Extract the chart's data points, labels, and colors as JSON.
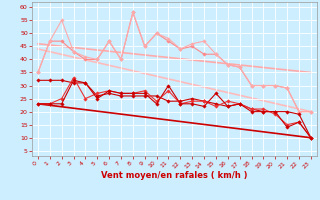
{
  "background_color": "#cceeff",
  "grid_color": "#ffffff",
  "xlabel": "Vent moyen/en rafales ( km/h )",
  "ylabel_ticks": [
    5,
    10,
    15,
    20,
    25,
    30,
    35,
    40,
    45,
    50,
    55,
    60
  ],
  "x_ticks": [
    0,
    1,
    2,
    3,
    4,
    5,
    6,
    7,
    8,
    9,
    10,
    11,
    12,
    13,
    14,
    15,
    16,
    17,
    18,
    19,
    20,
    21,
    22,
    23
  ],
  "xlim": [
    -0.5,
    23.5
  ],
  "ylim": [
    3,
    62
  ],
  "lines": [
    {
      "x": [
        0,
        1,
        2,
        3,
        4,
        5,
        6,
        7,
        8,
        9,
        10,
        11,
        12,
        13,
        14,
        15,
        16,
        17,
        18,
        19,
        20,
        21,
        22,
        23
      ],
      "y": [
        23,
        23,
        23,
        32,
        31,
        25,
        28,
        27,
        27,
        27,
        23,
        30,
        23,
        23,
        22,
        27,
        22,
        23,
        20,
        20,
        20,
        14,
        16,
        10
      ],
      "color": "#cc0000",
      "linewidth": 0.8,
      "marker": "D",
      "markersize": 1.8,
      "zorder": 5
    },
    {
      "x": [
        0,
        1,
        2,
        3,
        4,
        5,
        6,
        7,
        8,
        9,
        10,
        11,
        12,
        13,
        14,
        15,
        16,
        17,
        18,
        19,
        20,
        21,
        22,
        23
      ],
      "y": [
        32,
        32,
        32,
        31,
        31,
        26,
        27,
        26,
        26,
        26,
        26,
        24,
        24,
        25,
        24,
        23,
        22,
        23,
        21,
        20,
        20,
        20,
        19,
        10
      ],
      "color": "#cc0000",
      "linewidth": 0.8,
      "marker": "D",
      "markersize": 1.8,
      "zorder": 4
    },
    {
      "x": [
        0,
        1,
        2,
        3,
        4,
        5,
        6,
        7,
        8,
        9,
        10,
        11,
        12,
        13,
        14,
        15,
        16,
        17,
        18,
        19,
        20,
        21,
        22,
        23
      ],
      "y": [
        23,
        23,
        25,
        33,
        25,
        27,
        28,
        27,
        27,
        28,
        24,
        28,
        23,
        24,
        24,
        22,
        24,
        23,
        21,
        21,
        19,
        15,
        16,
        10
      ],
      "color": "#ee3333",
      "linewidth": 0.8,
      "marker": "D",
      "markersize": 1.8,
      "zorder": 4
    },
    {
      "x": [
        0,
        23
      ],
      "y": [
        23,
        10
      ],
      "color": "#cc0000",
      "linewidth": 1.2,
      "marker": null,
      "markersize": 0,
      "zorder": 3
    },
    {
      "x": [
        0,
        1,
        2,
        3,
        4,
        5,
        6,
        7,
        8,
        9,
        10,
        11,
        12,
        13,
        14,
        15,
        16,
        17,
        18,
        19,
        20,
        21,
        22,
        23
      ],
      "y": [
        35,
        47,
        47,
        43,
        40,
        40,
        47,
        40,
        58,
        45,
        50,
        47,
        44,
        45,
        42,
        42,
        38,
        37,
        30,
        30,
        30,
        29,
        20,
        20
      ],
      "color": "#ff8888",
      "linewidth": 0.8,
      "marker": "D",
      "markersize": 1.8,
      "zorder": 2
    },
    {
      "x": [
        0,
        1,
        2,
        3,
        4,
        5,
        6,
        7,
        8,
        9,
        10,
        11,
        12,
        13,
        14,
        15,
        16,
        17,
        18,
        19,
        20,
        21,
        22,
        23
      ],
      "y": [
        35,
        47,
        55,
        43,
        41,
        40,
        47,
        40,
        58,
        45,
        50,
        48,
        44,
        46,
        47,
        42,
        38,
        37,
        30,
        30,
        30,
        29,
        20,
        20
      ],
      "color": "#ffaaaa",
      "linewidth": 0.8,
      "marker": "D",
      "markersize": 1.8,
      "zorder": 2
    },
    {
      "x": [
        0,
        23
      ],
      "y": [
        46,
        35
      ],
      "color": "#ffaaaa",
      "linewidth": 1.2,
      "marker": null,
      "markersize": 0,
      "zorder": 1
    },
    {
      "x": [
        0,
        23
      ],
      "y": [
        44,
        20
      ],
      "color": "#ffbbbb",
      "linewidth": 1.2,
      "marker": null,
      "markersize": 0,
      "zorder": 1
    }
  ],
  "tick_color": "#cc0000",
  "tick_fontsize": 4.5,
  "label_fontsize": 6.0,
  "label_color": "#cc0000",
  "label_fontweight": "bold"
}
